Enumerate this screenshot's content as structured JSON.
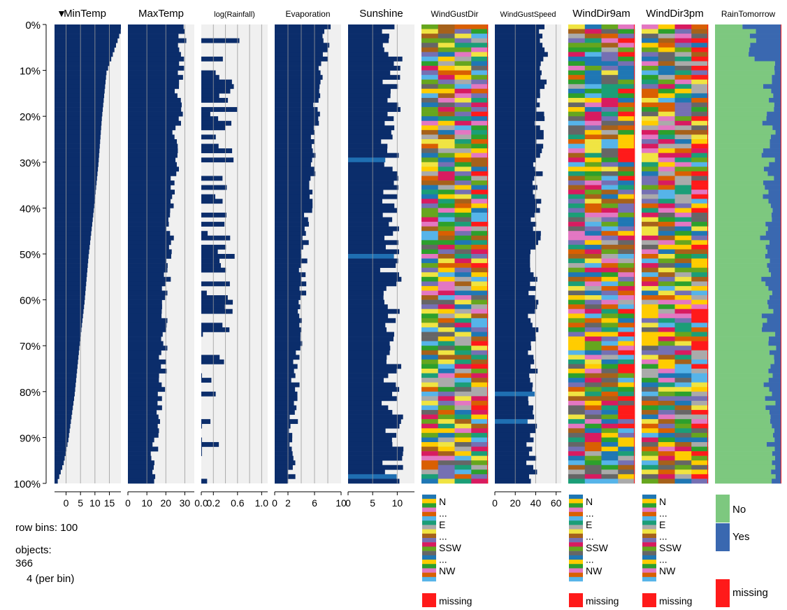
{
  "chart_data": {
    "type": "table",
    "title": "",
    "y_ticks": [
      "0%",
      "10%",
      "20%",
      "30%",
      "40%",
      "50%",
      "60%",
      "70%",
      "80%",
      "90%",
      "100%"
    ],
    "sort_indicator": "▼",
    "row_bins": 100,
    "columns": [
      {
        "name": "MinTemp",
        "kind": "numeric",
        "sorted": true,
        "domain": [
          -4,
          19
        ],
        "ticks": [
          0,
          5,
          10,
          15
        ],
        "tick_labels": [
          "0",
          "5",
          "10",
          "15"
        ],
        "gridlines": [
          0,
          5,
          10,
          15
        ],
        "profile": [
          [
            0,
            19.5
          ],
          [
            10,
            14.0
          ],
          [
            20,
            12.4
          ],
          [
            30,
            11.2
          ],
          [
            40,
            9.6
          ],
          [
            50,
            7.8
          ],
          [
            60,
            6.4
          ],
          [
            70,
            4.6
          ],
          [
            80,
            3.0
          ],
          [
            90,
            0.8
          ],
          [
            95,
            -0.8
          ],
          [
            100,
            -3.4
          ]
        ],
        "noise": 0
      },
      {
        "name": "MaxTemp",
        "kind": "numeric",
        "domain": [
          0,
          35
        ],
        "ticks": [
          0,
          10,
          20,
          30
        ],
        "tick_labels": [
          "0",
          "10",
          "20",
          "30"
        ],
        "gridlines": [
          10,
          20,
          30
        ],
        "profile": [
          [
            0,
            29
          ],
          [
            15,
            27
          ],
          [
            30,
            25
          ],
          [
            45,
            22
          ],
          [
            60,
            20
          ],
          [
            75,
            18
          ],
          [
            90,
            15
          ],
          [
            100,
            13
          ]
        ],
        "noise": 2.5
      },
      {
        "name": "log(Rainfall)",
        "kind": "numeric",
        "domain": [
          0,
          1.1
        ],
        "ticks": [
          0,
          0.2,
          0.6,
          1.0
        ],
        "tick_labels": [
          "0.0",
          "0.2",
          "0.6",
          "1.0"
        ],
        "gridlines": [
          0.2,
          0.4,
          0.6,
          0.8,
          1.0
        ],
        "profile": [
          [
            0,
            0.42
          ],
          [
            40,
            0.35
          ],
          [
            70,
            0.25
          ],
          [
            100,
            0.08
          ]
        ],
        "noise": 0.25,
        "zero_fraction": 0.45
      },
      {
        "name": "Evaporation",
        "kind": "numeric",
        "domain": [
          0,
          10
        ],
        "ticks": [
          0,
          2,
          6,
          10
        ],
        "tick_labels": [
          "0",
          "2",
          "6",
          "10"
        ],
        "gridlines": [
          2,
          4,
          6,
          8
        ],
        "profile": [
          [
            0,
            8.0
          ],
          [
            20,
            6.2
          ],
          [
            40,
            5.0
          ],
          [
            60,
            4.0
          ],
          [
            80,
            3.0
          ],
          [
            100,
            2.6
          ]
        ],
        "noise": 0.7
      },
      {
        "name": "Sunshine",
        "kind": "numeric",
        "domain": [
          0,
          13.5
        ],
        "ticks": [
          0,
          5,
          10
        ],
        "tick_labels": [
          "0",
          "5",
          "10"
        ],
        "gridlines": [
          5,
          10
        ],
        "profile": [
          [
            0,
            9.0
          ],
          [
            50,
            8.6
          ],
          [
            100,
            9.2
          ]
        ],
        "noise": 2.2,
        "missing_bins": [
          29,
          50,
          98
        ]
      },
      {
        "name": "WindGustDir",
        "kind": "categorical",
        "legend": [
          "N",
          "...",
          "E",
          "...",
          "SSW",
          "...",
          "NW"
        ],
        "missing_label": "missing"
      },
      {
        "name": "WindGustSpeed",
        "kind": "numeric",
        "domain": [
          0,
          65
        ],
        "ticks": [
          0,
          20,
          40,
          60
        ],
        "tick_labels": [
          "0",
          "20",
          "40",
          "60"
        ],
        "gridlines": [
          20,
          40,
          60
        ],
        "profile": [
          [
            0,
            48
          ],
          [
            30,
            42
          ],
          [
            60,
            38
          ],
          [
            100,
            36
          ]
        ],
        "noise": 5.5,
        "missing_bins": [
          80,
          86
        ]
      },
      {
        "name": "WindDir9am",
        "kind": "categorical",
        "legend": [
          "N",
          "...",
          "E",
          "...",
          "SSW",
          "...",
          "NW"
        ],
        "missing_label": "missing"
      },
      {
        "name": "WindDir3pm",
        "kind": "categorical",
        "legend": [
          "N",
          "...",
          "E",
          "...",
          "SSW",
          "...",
          "NW"
        ],
        "missing_label": "missing"
      },
      {
        "name": "RainTomorrow",
        "kind": "binary",
        "legend": [
          "No",
          "Yes"
        ],
        "missing_label": "missing"
      }
    ],
    "colors": {
      "bar": "#0b2d6b",
      "missing_bar": "#1f6fb2",
      "panel_bg": "#f0f0f0",
      "gridline": "#9a9a9a",
      "missing": "#ff1a1a",
      "no": "#7dc87f",
      "yes": "#3a68b0",
      "categorical": [
        "#1f77b4",
        "#ffcc00",
        "#2ca02c",
        "#e377c2",
        "#d95f02",
        "#56b4e9",
        "#1b9e77",
        "#aaaaaa",
        "#f0e442",
        "#a6611a",
        "#7570b3",
        "#d81b60",
        "#66a61e",
        "#666666"
      ]
    }
  },
  "info": {
    "row_bins_text": "row bins: 100",
    "objects_label": "objects:",
    "objects_count": "366",
    "per_bin_text": "4 (per bin)"
  }
}
